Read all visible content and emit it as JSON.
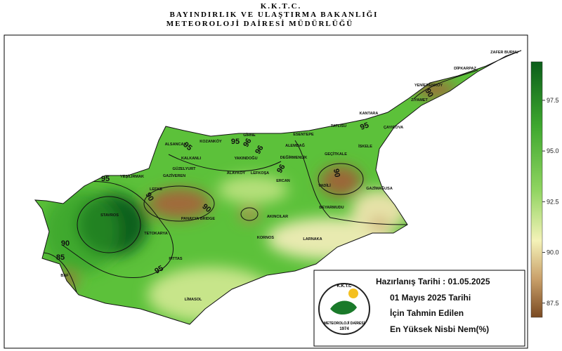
{
  "header": {
    "line1": "K.K.T.C.",
    "line2": "BAYINDIRLIK VE ULAŞTIRMA BAKANLIĞI",
    "line3": "METEOROLOJİ DAİRESİ MÜDÜRLÜĞÜ"
  },
  "places": [
    "ZAFER BURNU",
    "DİPKARPAZ",
    "YENİERENKÖY",
    "ZİYAMET",
    "KANTARA",
    "TATLISU",
    "ÇAYIROVA",
    "ESENTEPE",
    "GİRNE",
    "ALEMDAĞ",
    "KOZANKÖY",
    "ALSANCAK",
    "KALKANLI",
    "GÜZELYURT",
    "GAZİVEREN",
    "YEŞİLIRMAK",
    "LEFKE",
    "YAKINDOĞU",
    "DEĞİRMENLİK",
    "GEÇİTKALE",
    "İSKELE",
    "ALAYKÖY",
    "LEFKOŞA",
    "ERCAN",
    "VADİLİ",
    "GAZİMAĞUSA",
    "BEYARMUDU",
    "AKINCILAR",
    "PANAYYA BRIDGE",
    "STAVROS",
    "TETOKARYA",
    "PITTAS",
    "KORNOS",
    "LARNAKA",
    "LİMASOL",
    "BAF"
  ],
  "contour_labels": [
    "90",
    "95",
    "95",
    "96",
    "96",
    "96",
    "90",
    "90",
    "90",
    "95",
    "95",
    "85",
    "95",
    "90"
  ],
  "colorbar": {
    "lim": [
      86.8,
      99.4
    ],
    "ticks": [
      {
        "value": 87.5,
        "label": "87.5"
      },
      {
        "value": 90,
        "label": "90.0"
      },
      {
        "value": 92.5,
        "label": "92.5"
      },
      {
        "value": 95,
        "label": "95.0"
      },
      {
        "value": 97.5,
        "label": "97.5"
      }
    ]
  },
  "info": {
    "prepared": "Hazırlanış Tarihi : 01.05.2025",
    "line1": "01 Mayıs 2025 Tarihi",
    "line2": "İçin Tahmin Edilen",
    "line3": "En Yüksek Nisbi Nem(%)"
  },
  "logo": {
    "top": "K.K.T.C",
    "name": "METEOROLOJİ DAİRESİ",
    "year": "1974"
  }
}
